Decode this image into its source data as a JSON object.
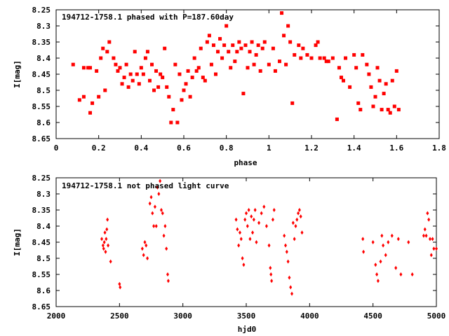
{
  "chart_data": [
    {
      "type": "scatter",
      "title": "194712-1758.1 phased with P=187.60day",
      "xlabel": "phase",
      "ylabel": "I[mag]",
      "xlim": [
        0,
        1.8
      ],
      "ylim": [
        8.65,
        8.25
      ],
      "y_inverted": true,
      "xticks": [
        "0",
        "0.2",
        "0.4",
        "0.6",
        "0.8",
        "1",
        "1.2",
        "1.4",
        "1.6",
        "1.8"
      ],
      "xtick_values": [
        0,
        0.2,
        0.4,
        0.6,
        0.8,
        1.0,
        1.2,
        1.4,
        1.6,
        1.8
      ],
      "yticks": [
        "8.25",
        "8.3",
        "8.35",
        "8.4",
        "8.45",
        "8.5",
        "8.55",
        "8.6",
        "8.65"
      ],
      "ytick_values": [
        8.25,
        8.3,
        8.35,
        8.4,
        8.45,
        8.5,
        8.55,
        8.6,
        8.65
      ],
      "marker": "square",
      "color": "#ff0000",
      "points": [
        [
          0.08,
          8.42
        ],
        [
          0.11,
          8.53
        ],
        [
          0.13,
          8.52
        ],
        [
          0.13,
          8.43
        ],
        [
          0.15,
          8.43
        ],
        [
          0.16,
          8.43
        ],
        [
          0.16,
          8.57
        ],
        [
          0.17,
          8.54
        ],
        [
          0.19,
          8.44
        ],
        [
          0.2,
          8.52
        ],
        [
          0.21,
          8.4
        ],
        [
          0.22,
          8.37
        ],
        [
          0.23,
          8.5
        ],
        [
          0.24,
          8.38
        ],
        [
          0.25,
          8.35
        ],
        [
          0.27,
          8.4
        ],
        [
          0.28,
          8.42
        ],
        [
          0.29,
          8.44
        ],
        [
          0.3,
          8.43
        ],
        [
          0.31,
          8.48
        ],
        [
          0.32,
          8.46
        ],
        [
          0.33,
          8.42
        ],
        [
          0.34,
          8.49
        ],
        [
          0.35,
          8.45
        ],
        [
          0.36,
          8.47
        ],
        [
          0.37,
          8.38
        ],
        [
          0.38,
          8.45
        ],
        [
          0.39,
          8.48
        ],
        [
          0.4,
          8.43
        ],
        [
          0.41,
          8.45
        ],
        [
          0.42,
          8.4
        ],
        [
          0.43,
          8.38
        ],
        [
          0.44,
          8.47
        ],
        [
          0.45,
          8.42
        ],
        [
          0.46,
          8.5
        ],
        [
          0.47,
          8.44
        ],
        [
          0.48,
          8.49
        ],
        [
          0.49,
          8.45
        ],
        [
          0.5,
          8.46
        ],
        [
          0.51,
          8.37
        ],
        [
          0.52,
          8.49
        ],
        [
          0.53,
          8.52
        ],
        [
          0.54,
          8.6
        ],
        [
          0.55,
          8.56
        ],
        [
          0.56,
          8.42
        ],
        [
          0.57,
          8.6
        ],
        [
          0.58,
          8.45
        ],
        [
          0.59,
          8.53
        ],
        [
          0.6,
          8.5
        ],
        [
          0.61,
          8.48
        ],
        [
          0.62,
          8.44
        ],
        [
          0.63,
          8.52
        ],
        [
          0.64,
          8.46
        ],
        [
          0.65,
          8.4
        ],
        [
          0.66,
          8.44
        ],
        [
          0.67,
          8.43
        ],
        [
          0.68,
          8.37
        ],
        [
          0.69,
          8.46
        ],
        [
          0.7,
          8.47
        ],
        [
          0.71,
          8.35
        ],
        [
          0.72,
          8.33
        ],
        [
          0.73,
          8.42
        ],
        [
          0.74,
          8.36
        ],
        [
          0.75,
          8.45
        ],
        [
          0.76,
          8.38
        ],
        [
          0.77,
          8.34
        ],
        [
          0.78,
          8.4
        ],
        [
          0.79,
          8.36
        ],
        [
          0.8,
          8.3
        ],
        [
          0.81,
          8.38
        ],
        [
          0.82,
          8.43
        ],
        [
          0.83,
          8.36
        ],
        [
          0.84,
          8.41
        ],
        [
          0.85,
          8.38
        ],
        [
          0.86,
          8.35
        ],
        [
          0.87,
          8.37
        ],
        [
          0.88,
          8.51
        ],
        [
          0.89,
          8.36
        ],
        [
          0.9,
          8.43
        ],
        [
          0.91,
          8.38
        ],
        [
          0.92,
          8.35
        ],
        [
          0.93,
          8.42
        ],
        [
          0.94,
          8.39
        ],
        [
          0.95,
          8.36
        ],
        [
          0.96,
          8.44
        ],
        [
          0.97,
          8.37
        ],
        [
          0.98,
          8.35
        ],
        [
          1.0,
          8.42
        ],
        [
          1.02,
          8.37
        ],
        [
          1.03,
          8.44
        ],
        [
          1.05,
          8.41
        ],
        [
          1.06,
          8.26
        ],
        [
          1.07,
          8.33
        ],
        [
          1.08,
          8.42
        ],
        [
          1.09,
          8.3
        ],
        [
          1.1,
          8.35
        ],
        [
          1.11,
          8.54
        ],
        [
          1.12,
          8.39
        ],
        [
          1.14,
          8.36
        ],
        [
          1.15,
          8.4
        ],
        [
          1.16,
          8.37
        ],
        [
          1.18,
          8.39
        ],
        [
          1.2,
          8.4
        ],
        [
          1.22,
          8.36
        ],
        [
          1.23,
          8.35
        ],
        [
          1.24,
          8.4
        ],
        [
          1.26,
          8.4
        ],
        [
          1.27,
          8.41
        ],
        [
          1.28,
          8.41
        ],
        [
          1.3,
          8.4
        ],
        [
          1.32,
          8.59
        ],
        [
          1.33,
          8.43
        ],
        [
          1.34,
          8.46
        ],
        [
          1.35,
          8.47
        ],
        [
          1.36,
          8.4
        ],
        [
          1.38,
          8.49
        ],
        [
          1.4,
          8.39
        ],
        [
          1.41,
          8.43
        ],
        [
          1.42,
          8.54
        ],
        [
          1.43,
          8.56
        ],
        [
          1.44,
          8.39
        ],
        [
          1.46,
          8.42
        ],
        [
          1.47,
          8.45
        ],
        [
          1.48,
          8.49
        ],
        [
          1.49,
          8.55
        ],
        [
          1.5,
          8.52
        ],
        [
          1.51,
          8.43
        ],
        [
          1.52,
          8.47
        ],
        [
          1.53,
          8.56
        ],
        [
          1.54,
          8.51
        ],
        [
          1.55,
          8.48
        ],
        [
          1.56,
          8.56
        ],
        [
          1.57,
          8.57
        ],
        [
          1.58,
          8.47
        ],
        [
          1.59,
          8.55
        ],
        [
          1.6,
          8.44
        ],
        [
          1.61,
          8.56
        ]
      ]
    },
    {
      "type": "scatter",
      "title": "194712-1758.1 not phased light curve",
      "xlabel": "hjd0",
      "ylabel": "I[mag]",
      "xlim": [
        2000,
        5000
      ],
      "ylim": [
        8.65,
        8.25
      ],
      "y_inverted": true,
      "xticks": [
        "2000",
        "2500",
        "3000",
        "3500",
        "4000",
        "4500",
        "5000"
      ],
      "xtick_values": [
        2000,
        2500,
        3000,
        3500,
        4000,
        4500,
        5000
      ],
      "yticks": [
        "8.25",
        "8.3",
        "8.35",
        "8.4",
        "8.45",
        "8.5",
        "8.55",
        "8.6",
        "8.65"
      ],
      "ytick_values": [
        8.25,
        8.3,
        8.35,
        8.4,
        8.45,
        8.5,
        8.55,
        8.6,
        8.65
      ],
      "marker": "diamond",
      "color": "#ff0000",
      "points": [
        [
          2360,
          8.44
        ],
        [
          2370,
          8.46
        ],
        [
          2375,
          8.47
        ],
        [
          2380,
          8.45
        ],
        [
          2385,
          8.42
        ],
        [
          2390,
          8.48
        ],
        [
          2395,
          8.44
        ],
        [
          2400,
          8.41
        ],
        [
          2405,
          8.38
        ],
        [
          2410,
          8.46
        ],
        [
          2430,
          8.51
        ],
        [
          2500,
          8.58
        ],
        [
          2505,
          8.59
        ],
        [
          2680,
          8.47
        ],
        [
          2690,
          8.49
        ],
        [
          2700,
          8.45
        ],
        [
          2710,
          8.46
        ],
        [
          2720,
          8.5
        ],
        [
          2740,
          8.33
        ],
        [
          2750,
          8.31
        ],
        [
          2760,
          8.36
        ],
        [
          2770,
          8.4
        ],
        [
          2780,
          8.34
        ],
        [
          2790,
          8.4
        ],
        [
          2800,
          8.28
        ],
        [
          2810,
          8.3
        ],
        [
          2820,
          8.26
        ],
        [
          2830,
          8.35
        ],
        [
          2840,
          8.36
        ],
        [
          2850,
          8.43
        ],
        [
          2860,
          8.4
        ],
        [
          2870,
          8.47
        ],
        [
          2880,
          8.55
        ],
        [
          2885,
          8.57
        ],
        [
          3420,
          8.38
        ],
        [
          3430,
          8.41
        ],
        [
          3440,
          8.46
        ],
        [
          3450,
          8.42
        ],
        [
          3460,
          8.44
        ],
        [
          3470,
          8.5
        ],
        [
          3480,
          8.52
        ],
        [
          3490,
          8.38
        ],
        [
          3500,
          8.36
        ],
        [
          3510,
          8.4
        ],
        [
          3520,
          8.35
        ],
        [
          3530,
          8.44
        ],
        [
          3540,
          8.37
        ],
        [
          3550,
          8.42
        ],
        [
          3560,
          8.38
        ],
        [
          3570,
          8.35
        ],
        [
          3580,
          8.45
        ],
        [
          3600,
          8.39
        ],
        [
          3620,
          8.36
        ],
        [
          3640,
          8.34
        ],
        [
          3660,
          8.4
        ],
        [
          3680,
          8.46
        ],
        [
          3690,
          8.53
        ],
        [
          3695,
          8.55
        ],
        [
          3700,
          8.57
        ],
        [
          3710,
          8.38
        ],
        [
          3720,
          8.35
        ],
        [
          3800,
          8.43
        ],
        [
          3810,
          8.46
        ],
        [
          3820,
          8.48
        ],
        [
          3830,
          8.51
        ],
        [
          3840,
          8.56
        ],
        [
          3850,
          8.59
        ],
        [
          3860,
          8.61
        ],
        [
          3870,
          8.39
        ],
        [
          3880,
          8.44
        ],
        [
          3890,
          8.4
        ],
        [
          3900,
          8.38
        ],
        [
          3910,
          8.36
        ],
        [
          3920,
          8.35
        ],
        [
          3930,
          8.37
        ],
        [
          3940,
          8.42
        ],
        [
          4420,
          8.44
        ],
        [
          4425,
          8.48
        ],
        [
          4500,
          8.45
        ],
        [
          4520,
          8.52
        ],
        [
          4530,
          8.55
        ],
        [
          4540,
          8.57
        ],
        [
          4560,
          8.51
        ],
        [
          4570,
          8.43
        ],
        [
          4580,
          8.46
        ],
        [
          4600,
          8.49
        ],
        [
          4620,
          8.45
        ],
        [
          4650,
          8.43
        ],
        [
          4680,
          8.53
        ],
        [
          4700,
          8.44
        ],
        [
          4720,
          8.55
        ],
        [
          4780,
          8.45
        ],
        [
          4810,
          8.55
        ],
        [
          4900,
          8.43
        ],
        [
          4910,
          8.41
        ],
        [
          4920,
          8.43
        ],
        [
          4930,
          8.36
        ],
        [
          4940,
          8.38
        ],
        [
          4950,
          8.44
        ],
        [
          4960,
          8.49
        ],
        [
          4970,
          8.44
        ],
        [
          4980,
          8.47
        ],
        [
          5000,
          8.47
        ]
      ]
    }
  ]
}
